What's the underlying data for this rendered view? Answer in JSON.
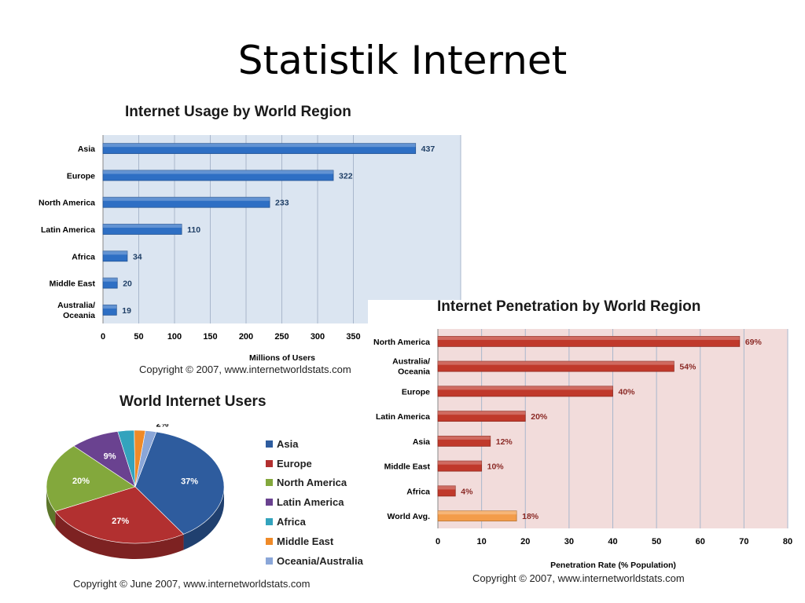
{
  "slide": {
    "title": "Statistik Internet"
  },
  "chart_data": [
    {
      "type": "bar",
      "orientation": "horizontal",
      "title": "Internet Usage by World Region",
      "xlabel": "Millions of Users",
      "ylabel": "",
      "categories": [
        "Asia",
        "Europe",
        "North America",
        "Latin America",
        "Africa",
        "Middle East",
        "Australia/ Oceania"
      ],
      "values": [
        437,
        322,
        233,
        110,
        34,
        20,
        19
      ],
      "value_labels": [
        "437",
        "322",
        "233",
        "110",
        "34",
        "20",
        "19"
      ],
      "xlim": [
        0,
        500
      ],
      "ticks": [
        0,
        50,
        100,
        150,
        200,
        250,
        300,
        350
      ],
      "grid": true,
      "color": "#2e6fc4",
      "background": "#dbe5f1",
      "copyright": "Copyright © 2007, www.internetworldstats.com"
    },
    {
      "type": "pie",
      "title": "World Internet Users",
      "labels": [
        "Asia",
        "Europe",
        "North America",
        "Latin America",
        "Africa",
        "Middle East",
        "Oceania/Australia"
      ],
      "values": [
        37,
        27,
        20,
        9,
        3,
        2,
        2
      ],
      "value_labels": [
        "37%",
        "27%",
        "20%",
        "9%",
        "3%",
        "2%",
        "2%"
      ],
      "colors": [
        "#2e5c9e",
        "#b23030",
        "#83a83c",
        "#6a4290",
        "#33a3bd",
        "#ef8a28",
        "#8aa6d8"
      ],
      "legend": "right",
      "copyright": "Copyright © June 2007, www.internetworldstats.com"
    },
    {
      "type": "bar",
      "orientation": "horizontal",
      "title": "Internet Penetration by World Region",
      "xlabel": "Penetration Rate (% Population)",
      "ylabel": "",
      "categories": [
        "North America",
        "Australia/ Oceania",
        "Europe",
        "Latin America",
        "Asia",
        "Middle East",
        "Africa",
        "World Avg."
      ],
      "values": [
        69,
        54,
        40,
        20,
        12,
        10,
        4,
        18
      ],
      "value_labels": [
        "69%",
        "54%",
        "40%",
        "20%",
        "12%",
        "10%",
        "4%",
        "18%"
      ],
      "xlim": [
        0,
        80
      ],
      "ticks": [
        0,
        10,
        20,
        30,
        40,
        50,
        60,
        70,
        80
      ],
      "grid": true,
      "color": "#c0392b",
      "highlight_color": "#f39c4a",
      "background": "#f2dcdb",
      "copyright": "Copyright © 2007, www.internetworldstats.com"
    }
  ]
}
